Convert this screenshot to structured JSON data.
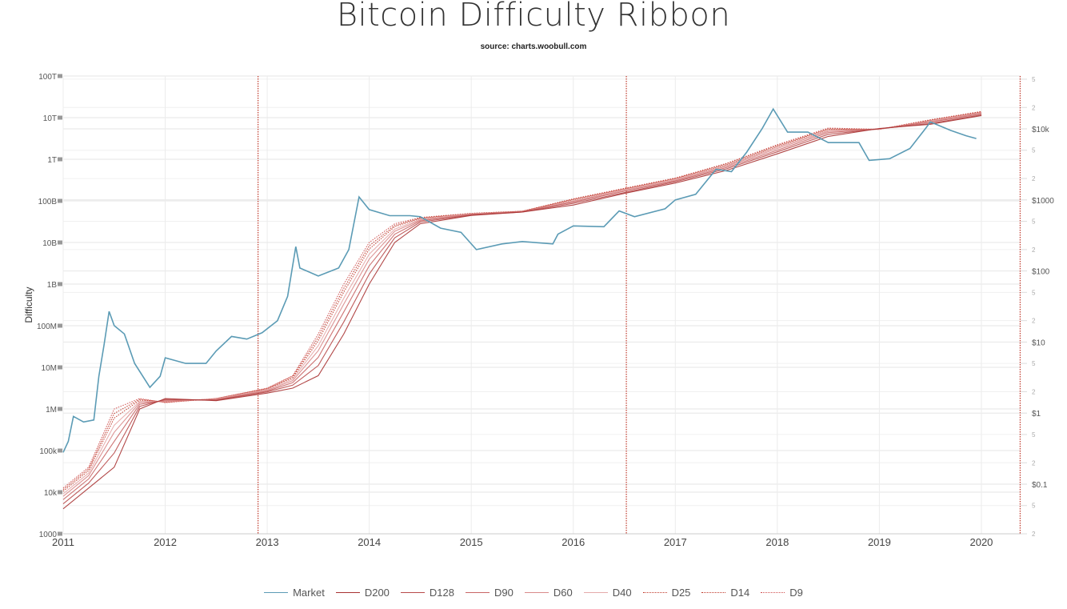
{
  "title": "Bitcoin Difficulty Ribbon",
  "subtitle": "source: charts.woobull.com",
  "chart_data": {
    "type": "line",
    "title": "Bitcoin Difficulty Ribbon",
    "subtitle": "source: charts.woobull.com",
    "ylabel": "Difficulty",
    "y_scale": "log",
    "ylim": [
      1000,
      100000000000000.0
    ],
    "y_ticks": [
      "1000",
      "10k",
      "100k",
      "1M",
      "10M",
      "100M",
      "1B",
      "10B",
      "100B",
      "1T",
      "10T",
      "100T"
    ],
    "y2_scale": "log",
    "y2lim": [
      0.02,
      55000
    ],
    "y2_ticks": [
      "$0.1",
      "$1",
      "$10",
      "$100",
      "$1000",
      "$10k"
    ],
    "y2_minor_ticks": [
      "2",
      "5"
    ],
    "xlim": [
      2011,
      2020.4
    ],
    "x_ticks": [
      "2011",
      "2012",
      "2013",
      "2014",
      "2015",
      "2016",
      "2017",
      "2018",
      "2019",
      "2020"
    ],
    "grid": true,
    "legend_placement": "bottom",
    "vertical_lines": [
      2012.91,
      2016.52,
      2020.38
    ],
    "vertical_line_color": "#c0392b",
    "ribbon_x": [
      2011.0,
      2011.25,
      2011.5,
      2011.75,
      2012.0,
      2012.5,
      2013.0,
      2013.25,
      2013.5,
      2013.75,
      2014.0,
      2014.25,
      2014.5,
      2015.0,
      2015.5,
      2016.0,
      2016.5,
      2017.0,
      2017.5,
      2018.0,
      2018.5,
      2019.0,
      2019.5,
      2020.0
    ],
    "series": [
      {
        "name": "Market",
        "axis": "price",
        "color": "#5b9bb5",
        "style": "solid",
        "x": [
          2011.0,
          2011.05,
          2011.1,
          2011.2,
          2011.3,
          2011.35,
          2011.4,
          2011.45,
          2011.5,
          2011.6,
          2011.7,
          2011.85,
          2011.95,
          2012.0,
          2012.2,
          2012.4,
          2012.5,
          2012.65,
          2012.8,
          2012.95,
          2013.1,
          2013.2,
          2013.28,
          2013.32,
          2013.5,
          2013.7,
          2013.8,
          2013.9,
          2014.0,
          2014.2,
          2014.4,
          2014.5,
          2014.7,
          2014.9,
          2015.05,
          2015.3,
          2015.5,
          2015.8,
          2015.85,
          2016.0,
          2016.3,
          2016.45,
          2016.6,
          2016.9,
          2017.0,
          2017.2,
          2017.4,
          2017.55,
          2017.7,
          2017.85,
          2017.96,
          2018.1,
          2018.3,
          2018.5,
          2018.8,
          2018.9,
          2019.1,
          2019.3,
          2019.45,
          2019.5,
          2019.7,
          2019.85,
          2019.95
        ],
        "values": [
          0.28,
          0.4,
          0.9,
          0.75,
          0.8,
          3.3,
          9,
          27,
          17,
          13,
          5,
          2.3,
          3.3,
          6,
          5,
          5,
          7.5,
          12,
          11,
          13.5,
          20,
          44,
          220,
          110,
          85,
          110,
          200,
          1100,
          730,
          600,
          600,
          580,
          400,
          350,
          200,
          240,
          260,
          240,
          330,
          430,
          420,
          700,
          580,
          750,
          1000,
          1200,
          2700,
          2500,
          4700,
          10000,
          19000,
          9000,
          9000,
          6400,
          6400,
          3600,
          3800,
          5300,
          10000,
          12500,
          9500,
          8000,
          7300
        ]
      },
      {
        "name": "D200",
        "axis": "difficulty",
        "color": "#a83232",
        "style": "solid",
        "values": [
          3980.0,
          12600.0,
          39800.0,
          1000000.0,
          1780000.0,
          1580000.0,
          2400000.0,
          3160000.0,
          6310000.0,
          63100000.0,
          1000000000.0,
          10000000000.0,
          28200000000.0,
          44700000000.0,
          53700000000.0,
          79400000000.0,
          151000000000.0,
          269000000000.0,
          537000000000.0,
          1350000000000.0,
          3550000000000.0,
          5500000000000.0,
          6920000000000.0,
          11200000000000.0
        ]
      },
      {
        "name": "D128",
        "axis": "difficulty",
        "color": "#b84a4a",
        "style": "solid",
        "values": [
          5250.0,
          16600.0,
          87100.0,
          1150000.0,
          1700000.0,
          1620000.0,
          2570000.0,
          3720000.0,
          11000000.0,
          123000000.0,
          1740000000.0,
          12900000000.0,
          30900000000.0,
          45700000000.0,
          53700000000.0,
          87100000000.0,
          158000000000.0,
          288000000000.0,
          589000000000.0,
          1510000000000.0,
          3980000000000.0,
          5370000000000.0,
          7240000000000.0,
          11700000000000.0
        ]
      },
      {
        "name": "D90",
        "axis": "difficulty",
        "color": "#c96666",
        "style": "solid",
        "values": [
          6610.0,
          20900.0,
          166000.0,
          1290000.0,
          1620000.0,
          1660000.0,
          2690000.0,
          4270000.0,
          17400000.0,
          214000000.0,
          2750000000.0,
          15800000000.0,
          33100000000.0,
          46800000000.0,
          55000000000.0,
          93300000000.0,
          170000000000.0,
          302000000000.0,
          631000000000.0,
          1660000000000.0,
          4370000000000.0,
          5370000000000.0,
          7760000000000.0,
          12300000000000.0
        ]
      },
      {
        "name": "D60",
        "axis": "difficulty",
        "color": "#d98a8a",
        "style": "solid",
        "values": [
          7940.0,
          25100.0,
          275000.0,
          1410000.0,
          1550000.0,
          1700000.0,
          2820000.0,
          4790000.0,
          25100000.0,
          331000000.0,
          3980000000.0,
          18600000000.0,
          34700000000.0,
          47900000000.0,
          55000000000.0,
          97700000000.0,
          178000000000.0,
          316000000000.0,
          676000000000.0,
          1820000000000.0,
          4680000000000.0,
          5370000000000.0,
          7940000000000.0,
          12900000000000.0
        ]
      },
      {
        "name": "D40",
        "axis": "difficulty",
        "color": "#e5aaaa",
        "style": "solid",
        "values": [
          9120.0,
          28800.0,
          407000.0,
          1510000.0,
          1510000.0,
          1740000.0,
          2950000.0,
          5250000.0,
          33100000.0,
          457000000.0,
          5250000000.0,
          20900000000.0,
          36300000000.0,
          49000000000.0,
          55000000000.0,
          102000000000.0,
          186000000000.0,
          331000000000.0,
          708000000000.0,
          1950000000000.0,
          4900000000000.0,
          5250000000000.0,
          8320000000000.0,
          13200000000000.0
        ]
      },
      {
        "name": "D25",
        "axis": "difficulty",
        "color": "#c0392b",
        "style": "dotted",
        "values": [
          10500.0,
          33100.0,
          603000.0,
          1620000.0,
          1480000.0,
          1740000.0,
          3020000.0,
          5620000.0,
          43700000.0,
          646000000.0,
          6920000000.0,
          24000000000.0,
          38000000000.0,
          49000000000.0,
          56200000000.0,
          107000000000.0,
          191000000000.0,
          339000000000.0,
          741000000000.0,
          2040000000000.0,
          5250000000000.0,
          5250000000000.0,
          8510000000000.0,
          13500000000000.0
        ]
      },
      {
        "name": "D14",
        "axis": "difficulty",
        "color": "#c0392b",
        "style": "dotted",
        "values": [
          11500.0,
          36300.0,
          776000.0,
          1700000.0,
          1450000.0,
          1780000.0,
          3090000.0,
          6030000.0,
          52500000.0,
          794000000.0,
          8320000000.0,
          25700000000.0,
          38900000000.0,
          50100000000.0,
          56200000000.0,
          110000000000.0,
          195000000000.0,
          347000000000.0,
          776000000000.0,
          2140000000000.0,
          5370000000000.0,
          5250000000000.0,
          8710000000000.0,
          13800000000000.0
        ]
      },
      {
        "name": "D9",
        "axis": "difficulty",
        "color": "#d05050",
        "style": "dotted",
        "values": [
          12600.0,
          39800.0,
          1000000.0,
          1780000.0,
          1410000.0,
          1780000.0,
          3160000.0,
          6310000.0,
          63100000.0,
          1000000000.0,
          10000000000.0,
          28200000000.0,
          39800000000.0,
          50100000000.0,
          56200000000.0,
          112000000000.0,
          200000000000.0,
          355000000000.0,
          794000000000.0,
          2240000000000.0,
          5620000000000.0,
          5250000000000.0,
          8910000000000.0,
          14100000000000.0
        ]
      }
    ]
  }
}
